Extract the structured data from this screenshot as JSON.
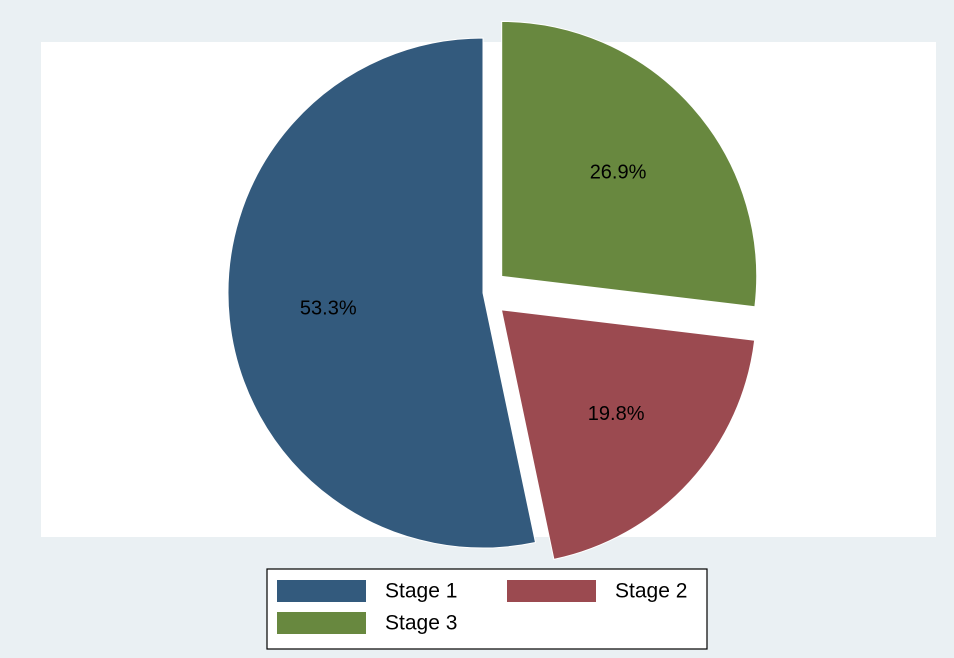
{
  "chart_data": {
    "type": "pie",
    "slices": [
      {
        "label": "Stage 1",
        "value": 53.3,
        "value_label": "53.3%",
        "color": "#335a7d",
        "exploded": false
      },
      {
        "label": "Stage 2",
        "value": 19.8,
        "value_label": "19.8%",
        "color": "#9b4a50",
        "exploded": true
      },
      {
        "label": "Stage 3",
        "value": 26.9,
        "value_label": "26.9%",
        "color": "#68883f",
        "exploded": true
      }
    ],
    "start_angle": "12 o'clock",
    "direction": "counterclockwise",
    "legend": {
      "position": "bottom",
      "columns": 2
    },
    "colors": {
      "outer_background": "#eaf0f3",
      "plot_background": "#ffffff"
    }
  }
}
